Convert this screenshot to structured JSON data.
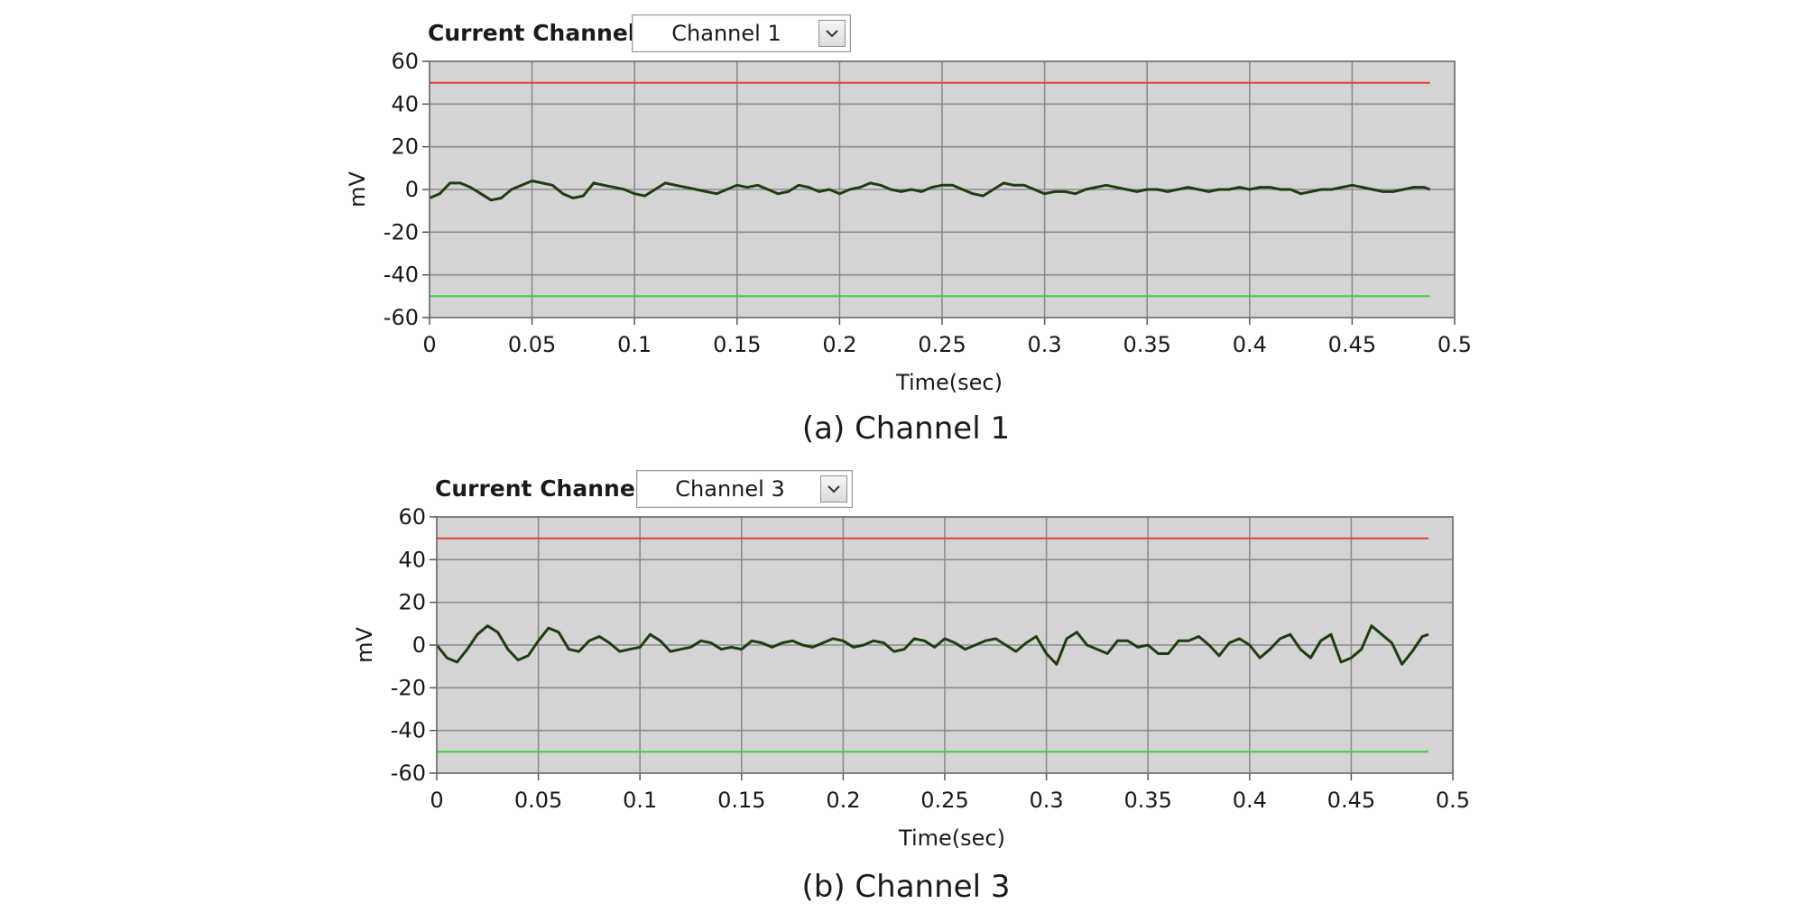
{
  "charts": [
    {
      "control_label": "Current Channel",
      "selected_channel": "Channel 1",
      "caption": "(a) Channel 1"
    },
    {
      "control_label": "Current Channel",
      "selected_channel": "Channel 3",
      "caption": "(b) Channel 3"
    }
  ],
  "colors": {
    "plot_background": "#d4d4d4",
    "grid": "#8c8c8c",
    "signal": "#1f3d12",
    "upper_limit": "#e0413a",
    "lower_limit": "#3fd23f"
  },
  "chart_data": [
    {
      "type": "line",
      "xlabel": "Time(sec)",
      "ylabel": "mV",
      "xlim": [
        0,
        0.5
      ],
      "ylim": [
        -60,
        60
      ],
      "x_ticks": [
        "0",
        "0.05",
        "0.1",
        "0.15",
        "0.2",
        "0.25",
        "0.3",
        "0.35",
        "0.4",
        "0.45",
        "0.5"
      ],
      "y_ticks": [
        "60",
        "40",
        "20",
        "0",
        "-20",
        "-40",
        "-60"
      ],
      "grid": true,
      "series": [
        {
          "role": "signal",
          "x": [
            0,
            0.005,
            0.01,
            0.015,
            0.02,
            0.025,
            0.03,
            0.035,
            0.04,
            0.045,
            0.05,
            0.055,
            0.06,
            0.065,
            0.07,
            0.075,
            0.08,
            0.085,
            0.09,
            0.095,
            0.1,
            0.105,
            0.11,
            0.115,
            0.12,
            0.125,
            0.13,
            0.135,
            0.14,
            0.145,
            0.15,
            0.155,
            0.16,
            0.165,
            0.17,
            0.175,
            0.18,
            0.185,
            0.19,
            0.195,
            0.2,
            0.205,
            0.21,
            0.215,
            0.22,
            0.225,
            0.23,
            0.235,
            0.24,
            0.245,
            0.25,
            0.255,
            0.26,
            0.265,
            0.27,
            0.275,
            0.28,
            0.285,
            0.29,
            0.295,
            0.3,
            0.305,
            0.31,
            0.315,
            0.32,
            0.325,
            0.33,
            0.335,
            0.34,
            0.345,
            0.35,
            0.355,
            0.36,
            0.365,
            0.37,
            0.375,
            0.38,
            0.385,
            0.39,
            0.395,
            0.4,
            0.405,
            0.41,
            0.415,
            0.42,
            0.425,
            0.43,
            0.435,
            0.44,
            0.445,
            0.45,
            0.455,
            0.46,
            0.465,
            0.47,
            0.475,
            0.48,
            0.485,
            0.488
          ],
          "y": [
            -4,
            -2,
            3,
            3,
            1,
            -2,
            -5,
            -4,
            0,
            2,
            4,
            3,
            2,
            -2,
            -4,
            -3,
            3,
            2,
            1,
            0,
            -2,
            -3,
            0,
            3,
            2,
            1,
            0,
            -1,
            -2,
            0,
            2,
            1,
            2,
            0,
            -2,
            -1,
            2,
            1,
            -1,
            0,
            -2,
            0,
            1,
            3,
            2,
            0,
            -1,
            0,
            -1,
            1,
            2,
            2,
            0,
            -2,
            -3,
            0,
            3,
            2,
            2,
            0,
            -2,
            -1,
            -1,
            -2,
            0,
            1,
            2,
            1,
            0,
            -1,
            0,
            0,
            -1,
            0,
            1,
            0,
            -1,
            0,
            0,
            1,
            0,
            1,
            1,
            0,
            0,
            -2,
            -1,
            0,
            0,
            1,
            2,
            1,
            0,
            -1,
            -1,
            0,
            1,
            1,
            0
          ]
        },
        {
          "role": "upper-limit",
          "x": [
            0,
            0.488
          ],
          "y": [
            50,
            50
          ]
        },
        {
          "role": "lower-limit",
          "x": [
            0,
            0.488
          ],
          "y": [
            -50,
            -50
          ]
        }
      ]
    },
    {
      "type": "line",
      "xlabel": "Time(sec)",
      "ylabel": "mV",
      "xlim": [
        0,
        0.5
      ],
      "ylim": [
        -60,
        60
      ],
      "x_ticks": [
        "0",
        "0.05",
        "0.1",
        "0.15",
        "0.2",
        "0.25",
        "0.3",
        "0.35",
        "0.4",
        "0.45",
        "0.5"
      ],
      "y_ticks": [
        "60",
        "40",
        "20",
        "0",
        "-20",
        "-40",
        "-60"
      ],
      "grid": true,
      "series": [
        {
          "role": "signal",
          "x": [
            0,
            0.005,
            0.01,
            0.015,
            0.02,
            0.025,
            0.03,
            0.035,
            0.04,
            0.045,
            0.05,
            0.055,
            0.06,
            0.065,
            0.07,
            0.075,
            0.08,
            0.085,
            0.09,
            0.095,
            0.1,
            0.105,
            0.11,
            0.115,
            0.12,
            0.125,
            0.13,
            0.135,
            0.14,
            0.145,
            0.15,
            0.155,
            0.16,
            0.165,
            0.17,
            0.175,
            0.18,
            0.185,
            0.19,
            0.195,
            0.2,
            0.205,
            0.21,
            0.215,
            0.22,
            0.225,
            0.23,
            0.235,
            0.24,
            0.245,
            0.25,
            0.255,
            0.26,
            0.265,
            0.27,
            0.275,
            0.28,
            0.285,
            0.29,
            0.295,
            0.3,
            0.305,
            0.31,
            0.315,
            0.32,
            0.325,
            0.33,
            0.335,
            0.34,
            0.345,
            0.35,
            0.355,
            0.36,
            0.365,
            0.37,
            0.375,
            0.38,
            0.385,
            0.39,
            0.395,
            0.4,
            0.405,
            0.41,
            0.415,
            0.42,
            0.425,
            0.43,
            0.435,
            0.44,
            0.445,
            0.45,
            0.455,
            0.46,
            0.465,
            0.47,
            0.475,
            0.48,
            0.485,
            0.488
          ],
          "y": [
            0,
            -6,
            -8,
            -2,
            5,
            9,
            6,
            -2,
            -7,
            -5,
            2,
            8,
            6,
            -2,
            -3,
            2,
            4,
            1,
            -3,
            -2,
            -1,
            5,
            2,
            -3,
            -2,
            -1,
            2,
            1,
            -2,
            -1,
            -2,
            2,
            1,
            -1,
            1,
            2,
            0,
            -1,
            1,
            3,
            2,
            -1,
            0,
            2,
            1,
            -3,
            -2,
            3,
            2,
            -1,
            3,
            1,
            -2,
            0,
            2,
            3,
            0,
            -3,
            1,
            4,
            -4,
            -9,
            3,
            6,
            0,
            -2,
            -4,
            2,
            2,
            -1,
            0,
            -4,
            -4,
            2,
            2,
            4,
            0,
            -5,
            1,
            3,
            0,
            -6,
            -2,
            3,
            5,
            -2,
            -6,
            2,
            5,
            -8,
            -6,
            -2,
            9,
            5,
            1,
            -9,
            -3,
            4,
            5
          ]
        },
        {
          "role": "upper-limit",
          "x": [
            0,
            0.488
          ],
          "y": [
            50,
            50
          ]
        },
        {
          "role": "lower-limit",
          "x": [
            0,
            0.488
          ],
          "y": [
            -50,
            -50
          ]
        }
      ]
    }
  ]
}
